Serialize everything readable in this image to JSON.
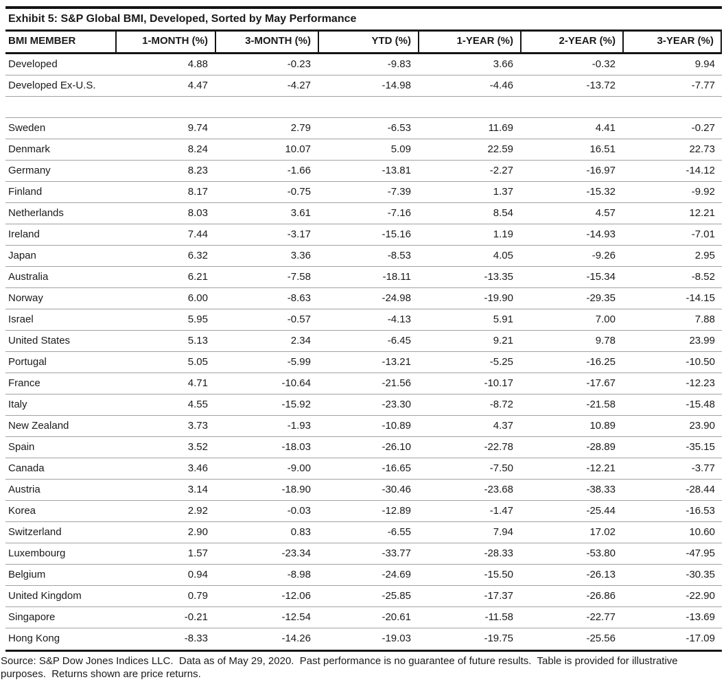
{
  "title": "Exhibit 5: S&P Global BMI, Developed, Sorted by May Performance",
  "table": {
    "columns": [
      "BMI MEMBER",
      "1-MONTH (%)",
      "3-MONTH (%)",
      "YTD (%)",
      "1-YEAR (%)",
      "2-YEAR (%)",
      "3-YEAR (%)"
    ],
    "rows": [
      {
        "member": "Developed",
        "values": [
          "4.88",
          "-0.23",
          "-9.83",
          "3.66",
          "-0.32",
          "9.94"
        ]
      },
      {
        "member": "Developed Ex-U.S.",
        "values": [
          "4.47",
          "-4.27",
          "-14.98",
          "-4.46",
          "-13.72",
          "-7.77"
        ]
      },
      {
        "member": "",
        "values": [
          "",
          "",
          "",
          "",
          "",
          ""
        ]
      },
      {
        "member": "Sweden",
        "values": [
          "9.74",
          "2.79",
          "-6.53",
          "11.69",
          "4.41",
          "-0.27"
        ]
      },
      {
        "member": "Denmark",
        "values": [
          "8.24",
          "10.07",
          "5.09",
          "22.59",
          "16.51",
          "22.73"
        ]
      },
      {
        "member": "Germany",
        "values": [
          "8.23",
          "-1.66",
          "-13.81",
          "-2.27",
          "-16.97",
          "-14.12"
        ]
      },
      {
        "member": "Finland",
        "values": [
          "8.17",
          "-0.75",
          "-7.39",
          "1.37",
          "-15.32",
          "-9.92"
        ]
      },
      {
        "member": "Netherlands",
        "values": [
          "8.03",
          "3.61",
          "-7.16",
          "8.54",
          "4.57",
          "12.21"
        ]
      },
      {
        "member": "Ireland",
        "values": [
          "7.44",
          "-3.17",
          "-15.16",
          "1.19",
          "-14.93",
          "-7.01"
        ]
      },
      {
        "member": "Japan",
        "values": [
          "6.32",
          "3.36",
          "-8.53",
          "4.05",
          "-9.26",
          "2.95"
        ]
      },
      {
        "member": "Australia",
        "values": [
          "6.21",
          "-7.58",
          "-18.11",
          "-13.35",
          "-15.34",
          "-8.52"
        ]
      },
      {
        "member": "Norway",
        "values": [
          "6.00",
          "-8.63",
          "-24.98",
          "-19.90",
          "-29.35",
          "-14.15"
        ]
      },
      {
        "member": "Israel",
        "values": [
          "5.95",
          "-0.57",
          "-4.13",
          "5.91",
          "7.00",
          "7.88"
        ]
      },
      {
        "member": "United States",
        "values": [
          "5.13",
          "2.34",
          "-6.45",
          "9.21",
          "9.78",
          "23.99"
        ]
      },
      {
        "member": "Portugal",
        "values": [
          "5.05",
          "-5.99",
          "-13.21",
          "-5.25",
          "-16.25",
          "-10.50"
        ]
      },
      {
        "member": "France",
        "values": [
          "4.71",
          "-10.64",
          "-21.56",
          "-10.17",
          "-17.67",
          "-12.23"
        ]
      },
      {
        "member": "Italy",
        "values": [
          "4.55",
          "-15.92",
          "-23.30",
          "-8.72",
          "-21.58",
          "-15.48"
        ]
      },
      {
        "member": "New Zealand",
        "values": [
          "3.73",
          "-1.93",
          "-10.89",
          "4.37",
          "10.89",
          "23.90"
        ]
      },
      {
        "member": "Spain",
        "values": [
          "3.52",
          "-18.03",
          "-26.10",
          "-22.78",
          "-28.89",
          "-35.15"
        ]
      },
      {
        "member": "Canada",
        "values": [
          "3.46",
          "-9.00",
          "-16.65",
          "-7.50",
          "-12.21",
          "-3.77"
        ]
      },
      {
        "member": "Austria",
        "values": [
          "3.14",
          "-18.90",
          "-30.46",
          "-23.68",
          "-38.33",
          "-28.44"
        ]
      },
      {
        "member": "Korea",
        "values": [
          "2.92",
          "-0.03",
          "-12.89",
          "-1.47",
          "-25.44",
          "-16.53"
        ]
      },
      {
        "member": "Switzerland",
        "values": [
          "2.90",
          "0.83",
          "-6.55",
          "7.94",
          "17.02",
          "10.60"
        ]
      },
      {
        "member": "Luxembourg",
        "values": [
          "1.57",
          "-23.34",
          "-33.77",
          "-28.33",
          "-53.80",
          "-47.95"
        ]
      },
      {
        "member": "Belgium",
        "values": [
          "0.94",
          "-8.98",
          "-24.69",
          "-15.50",
          "-26.13",
          "-30.35"
        ]
      },
      {
        "member": "United Kingdom",
        "values": [
          "0.79",
          "-12.06",
          "-25.85",
          "-17.37",
          "-26.86",
          "-22.90"
        ]
      },
      {
        "member": "Singapore",
        "values": [
          "-0.21",
          "-12.54",
          "-20.61",
          "-11.58",
          "-22.77",
          "-13.69"
        ]
      },
      {
        "member": "Hong Kong",
        "values": [
          "-8.33",
          "-14.26",
          "-19.03",
          "-19.75",
          "-25.56",
          "-17.09"
        ]
      }
    ]
  },
  "footer": "Source: S&P Dow Jones Indices LLC.  Data as of May 29, 2020.  Past performance is no guarantee of future results.  Table is provided for illustrative purposes.  Returns shown are price returns.",
  "colors": {
    "rule_black": "#141414",
    "row_divider": "#a0a0a0",
    "text": "#1a1a1a",
    "background": "#ffffff"
  }
}
